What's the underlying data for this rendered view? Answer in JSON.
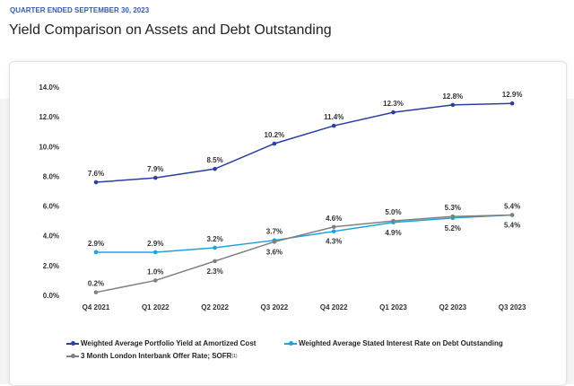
{
  "header": {
    "supertitle": "QUARTER ENDED SEPTEMBER 30, 2023",
    "title": "Yield Comparison on Assets and Debt Outstanding"
  },
  "chart_data": {
    "type": "line",
    "categories": [
      "Q4 2021",
      "Q1 2022",
      "Q2 2022",
      "Q3 2022",
      "Q4 2022",
      "Q1 2023",
      "Q2 2023",
      "Q3 2023"
    ],
    "ylim": [
      0,
      14
    ],
    "yticks": [
      "0.0%",
      "2.0%",
      "4.0%",
      "6.0%",
      "8.0%",
      "10.0%",
      "12.0%",
      "14.0%"
    ],
    "grid": false,
    "legend": "bottom",
    "series": [
      {
        "name": "Weighted Average Portfolio Yield at Amortized Cost",
        "color": "#2b3f9e",
        "values": [
          7.6,
          7.9,
          8.5,
          10.2,
          11.4,
          12.3,
          12.8,
          12.9
        ],
        "labels": [
          "7.6%",
          "7.9%",
          "8.5%",
          "10.2%",
          "11.4%",
          "12.3%",
          "12.8%",
          "12.9%"
        ]
      },
      {
        "name": "Weighted Average Stated Interest Rate on Debt Outstanding",
        "color": "#1fa3dc",
        "values": [
          2.9,
          2.9,
          3.2,
          3.7,
          4.3,
          4.9,
          5.2,
          5.4
        ],
        "labels": [
          "2.9%",
          "2.9%",
          "3.2%",
          "3.7%",
          "4.3%",
          "4.9%",
          "5.2%",
          "5.4%"
        ]
      },
      {
        "name": "3 Month London Interbank Offer Rate; SOFR",
        "footnote": "(1)",
        "color": "#808080",
        "values": [
          0.2,
          1.0,
          2.3,
          3.6,
          4.6,
          5.0,
          5.3,
          5.4
        ],
        "labels": [
          "0.2%",
          "1.0%",
          "2.3%",
          "3.6%",
          "4.6%",
          "5.0%",
          "5.3%",
          "5.4%"
        ]
      }
    ]
  }
}
